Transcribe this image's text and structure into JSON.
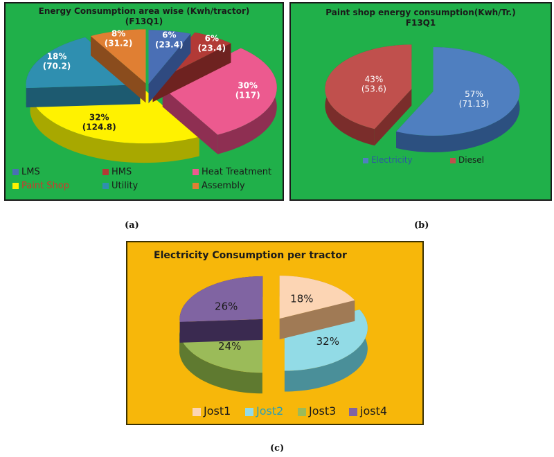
{
  "chart_data": [
    {
      "type": "pie",
      "title": "Energy Consumption area wise (Kwh/tractor)",
      "subtitle": "(F13Q1)",
      "panel_label": "(a)",
      "slices": [
        {
          "name": "LMS",
          "value": 23.4,
          "percent_label": "6%",
          "value_label": "(23.4)",
          "color": "#4a6fb5",
          "side": "#2f4a80"
        },
        {
          "name": "HMS",
          "value": 23.4,
          "percent_label": "6%",
          "value_label": "(23.4)",
          "color": "#b23a36",
          "side": "#6e2220"
        },
        {
          "name": "Heat Treatment",
          "value": 117,
          "percent_label": "30%",
          "value_label": "(117)",
          "color": "#ec5a8f",
          "side": "#8e2f52"
        },
        {
          "name": "Paint Shop",
          "value": 124.8,
          "percent_label": "32%",
          "value_label": "(124.8)",
          "color": "#fff200",
          "side": "#a8a800"
        },
        {
          "name": "Utility",
          "value": 70.2,
          "percent_label": "18%",
          "value_label": "(70.2)",
          "color": "#2f8fb0",
          "side": "#1d5a70"
        },
        {
          "name": "Assembly",
          "value": 31.2,
          "percent_label": "8%",
          "value_label": "(31.2)",
          "color": "#e07f33",
          "side": "#8a4c1d"
        }
      ],
      "legend": [
        {
          "name": "LMS",
          "color": "#4a6fb5",
          "text_color": "#1a1a1a"
        },
        {
          "name": "HMS",
          "color": "#b23a36",
          "text_color": "#1a1a1a"
        },
        {
          "name": "Heat Treatment",
          "color": "#ec5a8f",
          "text_color": "#1a1a1a"
        },
        {
          "name": "Paint Shop",
          "color": "#fff200",
          "text_color": "#d0362c"
        },
        {
          "name": "Utility",
          "color": "#2f8fb0",
          "text_color": "#1a1a1a"
        },
        {
          "name": "Assembly",
          "color": "#e07f33",
          "text_color": "#1a1a1a"
        }
      ]
    },
    {
      "type": "pie",
      "title": "Paint shop energy consumption(Kwh/Tr.)",
      "subtitle": "F13Q1",
      "panel_label": "(b)",
      "slices": [
        {
          "name": "Electricity",
          "value": 71.13,
          "percent_label": "57%",
          "value_label": "(71.13)",
          "color": "#4f7fc0",
          "side": "#2c5080"
        },
        {
          "name": "Diesel",
          "value": 53.6,
          "percent_label": "43%",
          "value_label": "(53.6)",
          "color": "#c0504d",
          "side": "#7a2d2b"
        }
      ],
      "legend": [
        {
          "name": "Electricity",
          "color": "#4f7fc0",
          "text_color": "#2c5aa0"
        },
        {
          "name": "Diesel",
          "color": "#c0504d",
          "text_color": "#1a1a1a"
        }
      ]
    },
    {
      "type": "pie",
      "title": "Electricity Consumption per tractor",
      "panel_label": "(c)",
      "slices": [
        {
          "name": "Jost1",
          "value": 18,
          "percent_label": "18%",
          "color": "#fcd5b4",
          "side": "#a07a55"
        },
        {
          "name": "Jost2",
          "value": 32,
          "percent_label": "32%",
          "color": "#92dbe6",
          "side": "#4a8f99"
        },
        {
          "name": "Jost3",
          "value": 24,
          "percent_label": "24%",
          "color": "#9bbb59",
          "side": "#5f7a30"
        },
        {
          "name": "jost4",
          "value": 26,
          "percent_label": "26%",
          "color": "#8064a2",
          "side": "#3a2a50"
        }
      ],
      "legend": [
        {
          "name": "Jost1",
          "color": "#fcd5b4",
          "text_color": "#1a1a1a"
        },
        {
          "name": "Jost2",
          "color": "#92dbe6",
          "text_color": "#2a9fb8"
        },
        {
          "name": "Jost3",
          "color": "#9bbb59",
          "text_color": "#1a1a1a"
        },
        {
          "name": "jost4",
          "color": "#8064a2",
          "text_color": "#1a1a1a"
        }
      ]
    }
  ]
}
